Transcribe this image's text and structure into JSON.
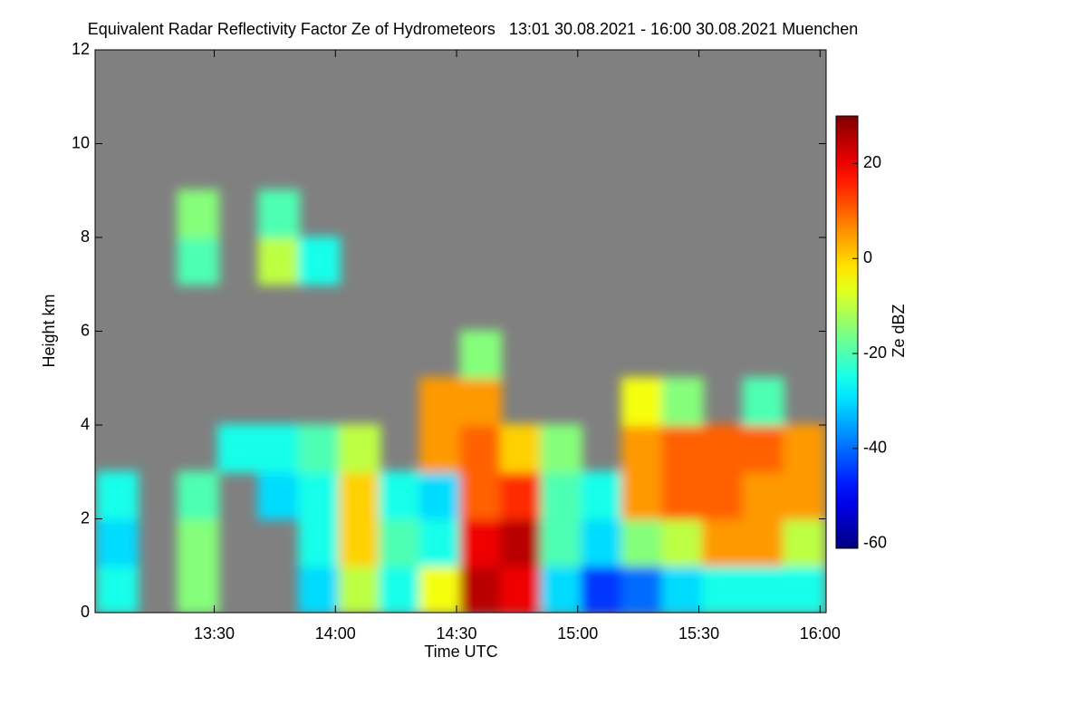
{
  "chart_data": {
    "type": "heatmap",
    "title": "Equivalent Radar Reflectivity Factor Ze of Hydrometeors   13:01 30.08.2021 - 16:00 30.08.2021 Muenchen",
    "xlabel": "Time UTC",
    "ylabel": "Height km",
    "colorbar_label": "Ze dBZ",
    "colormap": "jet",
    "background": "#808080",
    "x": [
      786,
      796,
      806,
      816,
      826,
      836,
      846,
      856,
      866,
      876,
      886,
      896,
      906,
      916,
      926,
      936,
      946,
      956
    ],
    "y": [
      0.5,
      1.5,
      2.5,
      3.5,
      4.5,
      5.5,
      6.5,
      7.5,
      8.5,
      9.5,
      10.5,
      11.5
    ],
    "z": [
      [
        -25,
        null,
        -15,
        null,
        null,
        -30,
        -10,
        -25,
        -5,
        25,
        20,
        -30,
        -45,
        -40,
        -30,
        -25,
        -25,
        -25
      ],
      [
        -30,
        null,
        -15,
        null,
        null,
        -25,
        0,
        -20,
        -25,
        20,
        25,
        -20,
        -30,
        -15,
        -10,
        5,
        5,
        -10
      ],
      [
        -25,
        null,
        -20,
        null,
        -30,
        -25,
        0,
        -25,
        -30,
        10,
        15,
        -20,
        -25,
        5,
        10,
        10,
        5,
        5
      ],
      [
        null,
        null,
        null,
        -25,
        -25,
        -20,
        -10,
        null,
        5,
        10,
        0,
        -15,
        null,
        5,
        10,
        10,
        10,
        5
      ],
      [
        null,
        null,
        null,
        null,
        null,
        null,
        null,
        null,
        5,
        5,
        null,
        null,
        null,
        -5,
        -15,
        null,
        -20,
        null
      ],
      [
        null,
        null,
        null,
        null,
        null,
        null,
        null,
        null,
        null,
        -15,
        null,
        null,
        null,
        null,
        null,
        null,
        null,
        null
      ],
      [
        null,
        null,
        null,
        null,
        null,
        null,
        null,
        null,
        null,
        null,
        null,
        null,
        null,
        null,
        null,
        null,
        null,
        null
      ],
      [
        null,
        null,
        -20,
        null,
        -10,
        -25,
        null,
        null,
        null,
        null,
        null,
        null,
        null,
        null,
        null,
        null,
        null,
        null
      ],
      [
        null,
        null,
        -15,
        null,
        -20,
        null,
        null,
        null,
        null,
        null,
        null,
        null,
        null,
        null,
        null,
        null,
        null,
        null
      ],
      [
        null,
        null,
        null,
        null,
        null,
        null,
        null,
        null,
        null,
        null,
        null,
        null,
        null,
        null,
        null,
        null,
        null,
        null
      ],
      [
        null,
        null,
        null,
        null,
        null,
        null,
        null,
        null,
        null,
        null,
        null,
        null,
        null,
        null,
        null,
        null,
        null,
        null
      ],
      [
        null,
        null,
        null,
        null,
        null,
        null,
        null,
        null,
        null,
        null,
        null,
        null,
        null,
        null,
        null,
        null,
        null,
        null
      ]
    ],
    "xlim": [
      780.5,
      961.5
    ],
    "xticks": [
      {
        "value": 810,
        "label": "13:30"
      },
      {
        "value": 840,
        "label": "14:00"
      },
      {
        "value": 870,
        "label": "14:30"
      },
      {
        "value": 900,
        "label": "15:00"
      },
      {
        "value": 930,
        "label": "15:30"
      },
      {
        "value": 960,
        "label": "16:00"
      }
    ],
    "ylim": [
      0,
      12
    ],
    "yticks": [
      0,
      2,
      4,
      6,
      8,
      10,
      12
    ],
    "zlim": [
      -61,
      30
    ],
    "zticks": [
      -60,
      -40,
      -20,
      0,
      20
    ]
  }
}
